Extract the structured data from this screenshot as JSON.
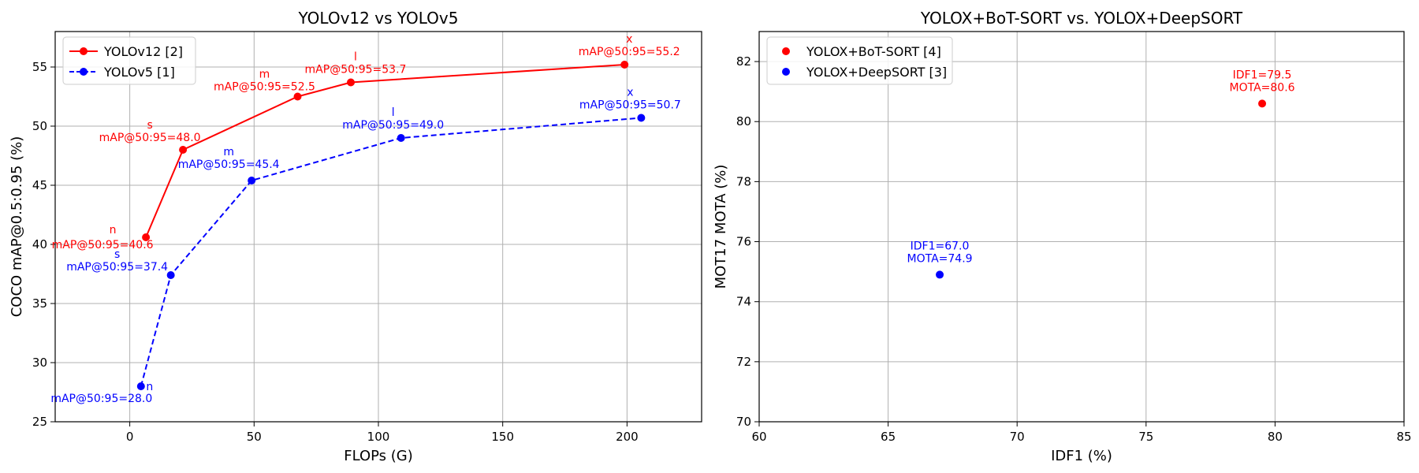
{
  "chart_data": [
    {
      "type": "line",
      "title": "YOLOv12 vs YOLOv5",
      "xlabel": "FLOPs (G)",
      "ylabel": "COCO mAP@0.5:0.95 (%)",
      "xlim": [
        -30,
        230
      ],
      "ylim": [
        25,
        58
      ],
      "xticks": [
        0,
        50,
        100,
        150,
        200
      ],
      "yticks": [
        25,
        30,
        35,
        40,
        45,
        50,
        55
      ],
      "grid": true,
      "legend_position": "upper-left",
      "series": [
        {
          "name": "YOLOv12 [2]",
          "color": "#ff0000",
          "line_style": "solid",
          "points": [
            {
              "x": 6.5,
              "y": 40.6,
              "size_label": "n",
              "label": "mAP@50:95=40.6"
            },
            {
              "x": 21.4,
              "y": 48.0,
              "size_label": "s",
              "label": "mAP@50:95=48.0"
            },
            {
              "x": 67.5,
              "y": 52.5,
              "size_label": "m",
              "label": "mAP@50:95=52.5"
            },
            {
              "x": 88.9,
              "y": 53.7,
              "size_label": "l",
              "label": "mAP@50:95=53.7"
            },
            {
              "x": 199.0,
              "y": 55.2,
              "size_label": "x",
              "label": "mAP@50:95=55.2"
            }
          ]
        },
        {
          "name": "YOLOv5 [1]",
          "color": "#0000ff",
          "line_style": "dashed",
          "points": [
            {
              "x": 4.5,
              "y": 28.0,
              "size_label": "n",
              "label": "mAP@50:95=28.0"
            },
            {
              "x": 16.5,
              "y": 37.4,
              "size_label": "s",
              "label": "mAP@50:95=37.4"
            },
            {
              "x": 49.0,
              "y": 45.4,
              "size_label": "m",
              "label": "mAP@50:95=45.4"
            },
            {
              "x": 109.1,
              "y": 49.0,
              "size_label": "l",
              "label": "mAP@50:95=49.0"
            },
            {
              "x": 205.7,
              "y": 50.7,
              "size_label": "x",
              "label": "mAP@50:95=50.7"
            }
          ]
        }
      ]
    },
    {
      "type": "scatter",
      "title": "YOLOX+BoT-SORT vs. YOLOX+DeepSORT",
      "xlabel": "IDF1 (%)",
      "ylabel": "MOT17 MOTA (%)",
      "xlim": [
        60,
        85
      ],
      "ylim": [
        70,
        83
      ],
      "xticks": [
        60,
        65,
        70,
        75,
        80,
        85
      ],
      "yticks": [
        70,
        72,
        74,
        76,
        78,
        80,
        82
      ],
      "grid": true,
      "legend_position": "upper-left",
      "series": [
        {
          "name": "YOLOX+BoT-SORT [4]",
          "color": "#ff0000",
          "points": [
            {
              "x": 79.5,
              "y": 80.6,
              "label_lines": [
                "IDF1=79.5",
                "MOTA=80.6"
              ]
            }
          ]
        },
        {
          "name": "YOLOX+DeepSORT [3]",
          "color": "#0000ff",
          "points": [
            {
              "x": 67.0,
              "y": 74.9,
              "label_lines": [
                "IDF1=67.0",
                "MOTA=74.9"
              ]
            }
          ]
        }
      ]
    }
  ]
}
